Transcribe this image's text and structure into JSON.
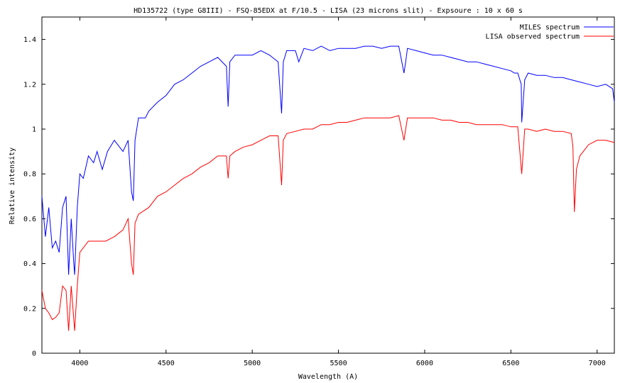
{
  "chart_data": {
    "type": "line",
    "title": "HD135722 (type G8III) - FSQ-85EDX at F/10.5 - LISA (23 microns slit) - Expsoure : 10  x 60 s",
    "xlabel": "Wavelength (A)",
    "ylabel": "Relative intensity",
    "xlim": [
      3780,
      7100
    ],
    "ylim": [
      0,
      1.5
    ],
    "x_ticks": [
      4000,
      4500,
      5000,
      5500,
      6000,
      6500,
      7000
    ],
    "y_ticks": [
      0,
      0.2,
      0.4,
      0.6,
      0.8,
      1,
      1.2,
      1.4
    ],
    "grid": false,
    "legend_position": "top-right",
    "series": [
      {
        "name": "MILES spectrum",
        "color": "#0000ff",
        "x": [
          3780,
          3800,
          3820,
          3840,
          3860,
          3880,
          3900,
          3920,
          3935,
          3950,
          3965,
          3970,
          3985,
          4000,
          4020,
          4050,
          4080,
          4100,
          4130,
          4160,
          4200,
          4250,
          4280,
          4300,
          4310,
          4320,
          4340,
          4380,
          4400,
          4450,
          4500,
          4550,
          4600,
          4650,
          4700,
          4750,
          4800,
          4850,
          4860,
          4870,
          4900,
          4950,
          5000,
          5050,
          5100,
          5150,
          5170,
          5180,
          5200,
          5250,
          5270,
          5300,
          5350,
          5400,
          5450,
          5500,
          5550,
          5600,
          5650,
          5700,
          5750,
          5800,
          5850,
          5880,
          5890,
          5900,
          5950,
          6000,
          6050,
          6100,
          6150,
          6200,
          6250,
          6300,
          6350,
          6400,
          6450,
          6500,
          6520,
          6540,
          6560,
          6563,
          6580,
          6600,
          6650,
          6700,
          6750,
          6800,
          6850,
          6900,
          6950,
          7000,
          7050,
          7090,
          7100
        ],
        "y": [
          0.7,
          0.52,
          0.65,
          0.47,
          0.5,
          0.45,
          0.65,
          0.7,
          0.35,
          0.6,
          0.4,
          0.35,
          0.65,
          0.8,
          0.78,
          0.88,
          0.85,
          0.9,
          0.82,
          0.9,
          0.95,
          0.9,
          0.95,
          0.72,
          0.68,
          0.95,
          1.05,
          1.05,
          1.08,
          1.12,
          1.15,
          1.2,
          1.22,
          1.25,
          1.28,
          1.3,
          1.32,
          1.28,
          1.1,
          1.3,
          1.33,
          1.33,
          1.33,
          1.35,
          1.33,
          1.3,
          1.07,
          1.3,
          1.35,
          1.35,
          1.3,
          1.36,
          1.35,
          1.37,
          1.35,
          1.36,
          1.36,
          1.36,
          1.37,
          1.37,
          1.36,
          1.37,
          1.37,
          1.25,
          1.3,
          1.36,
          1.35,
          1.34,
          1.33,
          1.33,
          1.32,
          1.31,
          1.3,
          1.3,
          1.29,
          1.28,
          1.27,
          1.26,
          1.25,
          1.25,
          1.2,
          1.03,
          1.22,
          1.25,
          1.24,
          1.24,
          1.23,
          1.23,
          1.22,
          1.21,
          1.2,
          1.19,
          1.2,
          1.18,
          1.12
        ]
      },
      {
        "name": "LISA observed spectrum",
        "color": "#ff0000",
        "x": [
          3780,
          3800,
          3820,
          3840,
          3860,
          3880,
          3900,
          3920,
          3935,
          3950,
          3965,
          3970,
          3985,
          4000,
          4050,
          4100,
          4150,
          4200,
          4250,
          4280,
          4300,
          4310,
          4320,
          4340,
          4400,
          4450,
          4500,
          4550,
          4600,
          4650,
          4700,
          4750,
          4800,
          4850,
          4860,
          4870,
          4900,
          4950,
          5000,
          5050,
          5100,
          5150,
          5170,
          5180,
          5200,
          5250,
          5300,
          5350,
          5400,
          5450,
          5500,
          5550,
          5600,
          5650,
          5700,
          5750,
          5800,
          5850,
          5880,
          5890,
          5900,
          5950,
          6000,
          6050,
          6100,
          6150,
          6200,
          6250,
          6300,
          6350,
          6400,
          6450,
          6500,
          6540,
          6563,
          6580,
          6600,
          6650,
          6700,
          6750,
          6800,
          6850,
          6860,
          6868,
          6880,
          6900,
          6950,
          7000,
          7050,
          7100
        ],
        "y": [
          0.28,
          0.2,
          0.18,
          0.15,
          0.16,
          0.18,
          0.3,
          0.28,
          0.1,
          0.3,
          0.15,
          0.1,
          0.3,
          0.45,
          0.5,
          0.5,
          0.5,
          0.52,
          0.55,
          0.6,
          0.4,
          0.35,
          0.58,
          0.62,
          0.65,
          0.7,
          0.72,
          0.75,
          0.78,
          0.8,
          0.83,
          0.85,
          0.88,
          0.88,
          0.78,
          0.88,
          0.9,
          0.92,
          0.93,
          0.95,
          0.97,
          0.97,
          0.75,
          0.95,
          0.98,
          0.99,
          1.0,
          1.0,
          1.02,
          1.02,
          1.03,
          1.03,
          1.04,
          1.05,
          1.05,
          1.05,
          1.05,
          1.06,
          0.95,
          1.0,
          1.05,
          1.05,
          1.05,
          1.05,
          1.04,
          1.04,
          1.03,
          1.03,
          1.02,
          1.02,
          1.02,
          1.02,
          1.01,
          1.01,
          0.8,
          1.0,
          1.0,
          0.99,
          1.0,
          0.99,
          0.99,
          0.98,
          0.92,
          0.63,
          0.82,
          0.88,
          0.93,
          0.95,
          0.95,
          0.94
        ]
      }
    ]
  }
}
